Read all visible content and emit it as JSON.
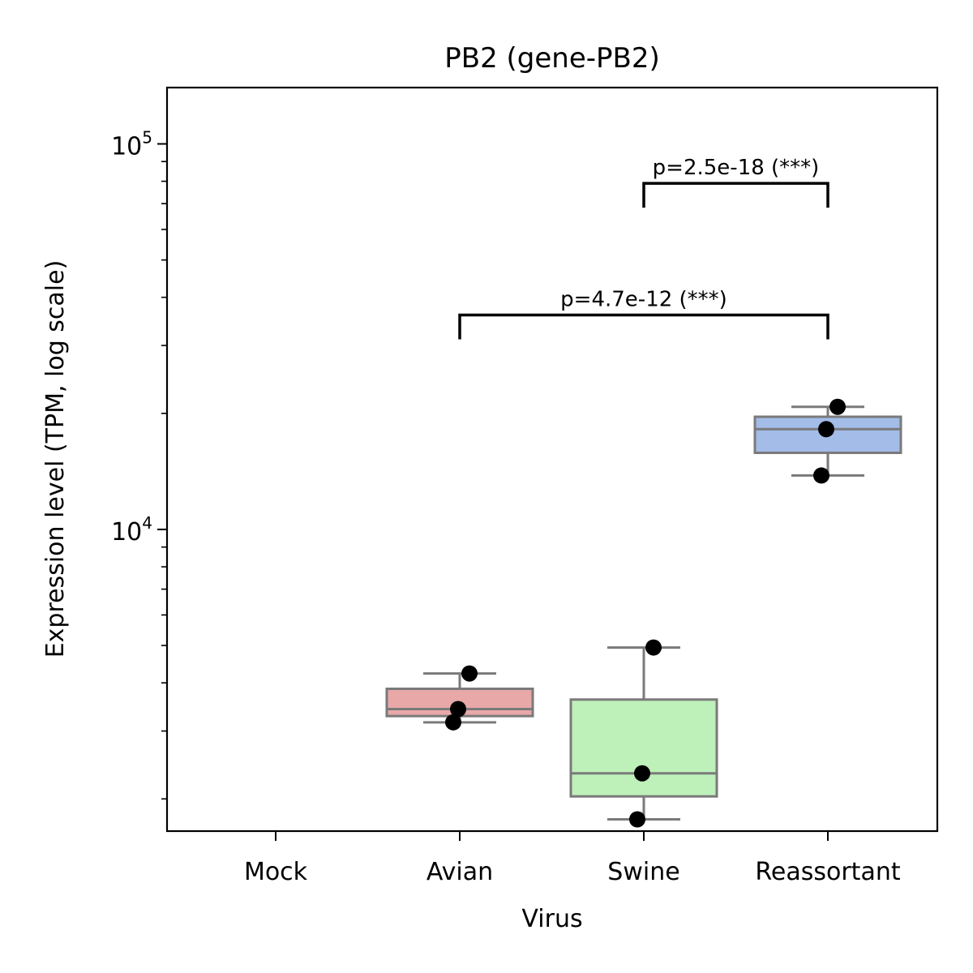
{
  "chart_data": {
    "type": "box",
    "title": "PB2 (gene-PB2)",
    "xlabel": "Virus",
    "ylabel": "Expression level (TPM, log scale)",
    "yscale": "log",
    "ylim": [
      1650,
      140000
    ],
    "categories": [
      "Mock",
      "Avian",
      "Swine",
      "Reassortant"
    ],
    "yticks": [
      {
        "value": 10000,
        "base": "10",
        "exp": "4"
      },
      {
        "value": 100000,
        "base": "10",
        "exp": "5"
      }
    ],
    "boxes": [
      {
        "category": "Avian",
        "color": "#e8a8a8",
        "q1": 3280,
        "median": 3420,
        "q3": 3860,
        "whisker_low": 3160,
        "whisker_high": 4230,
        "points": [
          4230,
          3420,
          3160
        ]
      },
      {
        "category": "Swine",
        "color": "#bef0b9",
        "q1": 2030,
        "median": 2330,
        "q3": 3620,
        "whisker_low": 1770,
        "whisker_high": 4940,
        "points": [
          4940,
          2330,
          1770
        ]
      },
      {
        "category": "Reassortant",
        "color": "#a3bce8",
        "q1": 15800,
        "median": 18200,
        "q3": 19600,
        "whisker_low": 13800,
        "whisker_high": 20800,
        "points": [
          20800,
          18200,
          13800
        ]
      }
    ],
    "annotations": [
      {
        "from": "Avian",
        "to": "Reassortant",
        "y": 36000,
        "label": "p=4.7e-12 (***)"
      },
      {
        "from": "Swine",
        "to": "Reassortant",
        "y": 79000,
        "label": "p=2.5e-18 (***)"
      }
    ],
    "colors": {
      "box_edge": "#7a7a7a",
      "point": "#000000"
    }
  }
}
